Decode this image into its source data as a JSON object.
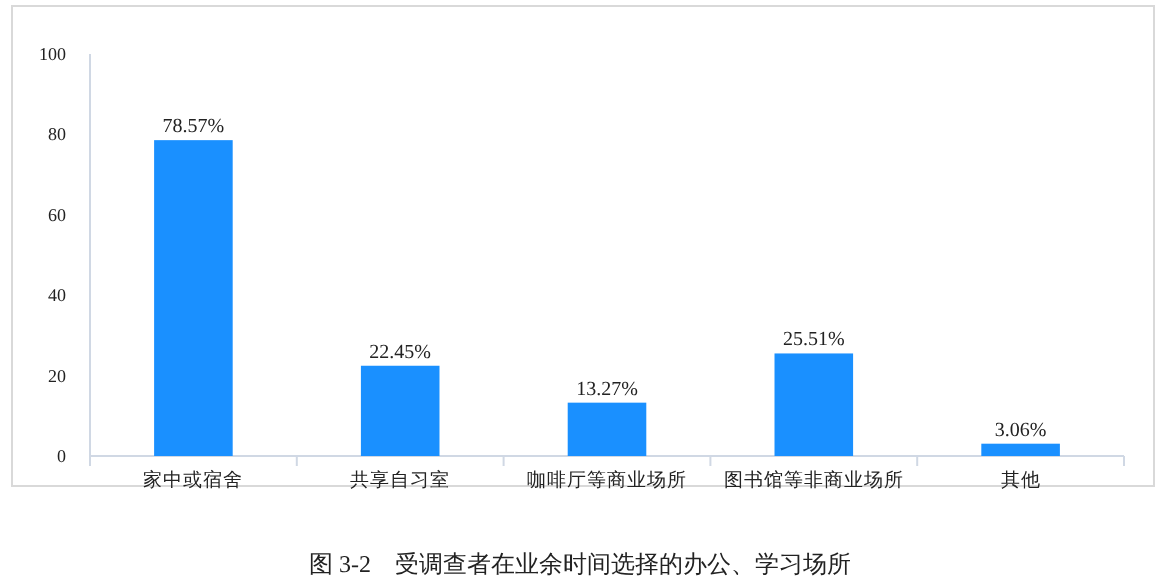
{
  "chart_data": {
    "type": "bar",
    "categories": [
      "家中或宿舍",
      "共享自习室",
      "咖啡厅等商业场所",
      "图书馆等非商业场所",
      "其他"
    ],
    "values": [
      78.57,
      22.45,
      13.27,
      25.51,
      3.06
    ],
    "value_labels": [
      "78.57%",
      "22.45%",
      "13.27%",
      "25.51%",
      "3.06%"
    ],
    "color": "#1a90ff",
    "ylim": [
      0,
      100
    ],
    "yticks": [
      0,
      20,
      40,
      60,
      80,
      100
    ],
    "grid": false,
    "annotations": [
      "图 3-2    受调查者在业余时间选择的办公、学习场所"
    ]
  }
}
